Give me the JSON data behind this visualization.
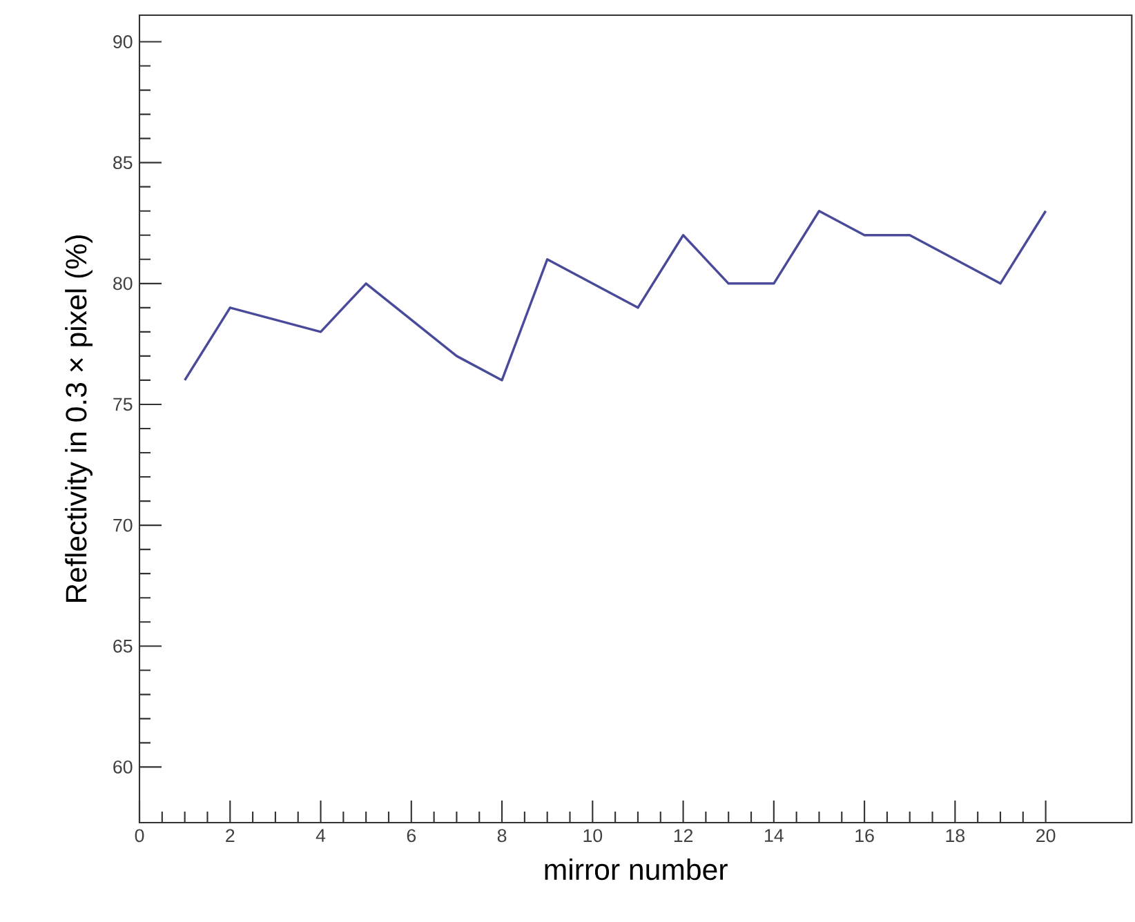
{
  "chart_data": {
    "type": "line",
    "xlabel": "mirror number",
    "ylabel": "Reflectivity in 0.3 × pixel (%)",
    "x": [
      1,
      2,
      3,
      4,
      5,
      6,
      7,
      8,
      9,
      10,
      11,
      12,
      13,
      14,
      15,
      16,
      17,
      18,
      19,
      20
    ],
    "series": [
      {
        "color": "#4a4a9a",
        "values": [
          76,
          79,
          78.5,
          78,
          80,
          78.5,
          77,
          76,
          81,
          80,
          79,
          82,
          80,
          80,
          83,
          82,
          82,
          81,
          80,
          83
        ]
      }
    ],
    "xlim": [
      0,
      21.9
    ],
    "ylim": [
      57.7,
      91.1
    ],
    "xticks": [
      0,
      2,
      4,
      6,
      8,
      10,
      12,
      14,
      16,
      18,
      20
    ],
    "yticks": [
      60,
      65,
      70,
      75,
      80,
      85,
      90
    ],
    "marker": "none",
    "line_style": "solid"
  }
}
